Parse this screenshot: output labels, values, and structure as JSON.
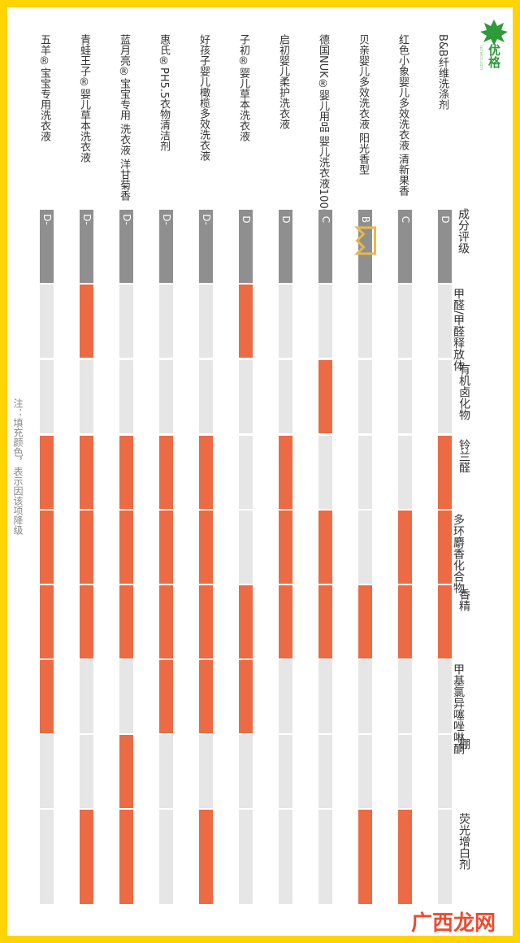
{
  "brand": {
    "name": "优格",
    "sub": "ucheck.com",
    "colors": {
      "border": "#ffd400",
      "fill": "#ec6a44",
      "empty": "#e6e6e6",
      "grade": "#8f8f8f",
      "crown": "#e8b84a"
    }
  },
  "note": "注：填充颜色，表示因该项降级",
  "watermark": "广西龙网",
  "chart_data": {
    "type": "table",
    "header_label": "成分评级",
    "columns": [
      "甲醛/甲醛释放体",
      "有机卤化物",
      "铃兰醛",
      "多环麝香化合物",
      "香精",
      "甲基氯异噻唑啉酮",
      "硼",
      "荧光增白剂"
    ],
    "rows": [
      {
        "name": "B&B纤维洗涤剂",
        "grade": "D",
        "flags": [
          0,
          0,
          1,
          1,
          1,
          0,
          0,
          0
        ]
      },
      {
        "name": "红色小象婴儿多效洗衣液 清新果香",
        "grade": "C",
        "flags": [
          0,
          0,
          0,
          1,
          1,
          0,
          0,
          1
        ]
      },
      {
        "name": "贝亲婴儿多效洗衣液 阳光香型",
        "grade": "B",
        "crown": true,
        "flags": [
          0,
          0,
          0,
          0,
          1,
          0,
          0,
          1
        ]
      },
      {
        "name": "德国NUK®婴儿用品 婴儿洗衣液1000毫升",
        "grade": "C",
        "flags": [
          0,
          1,
          0,
          1,
          1,
          0,
          0,
          0
        ]
      },
      {
        "name": "启初婴儿柔护洗衣液",
        "grade": "D",
        "flags": [
          0,
          0,
          1,
          1,
          1,
          0,
          0,
          0
        ]
      },
      {
        "name": "子初®婴儿草本洗衣液",
        "grade": "D",
        "flags": [
          1,
          0,
          0,
          0,
          1,
          1,
          0,
          0
        ]
      },
      {
        "name": "好孩子婴儿橄榄多效洗衣液",
        "grade": "D-",
        "flags": [
          0,
          0,
          1,
          1,
          1,
          1,
          0,
          1
        ]
      },
      {
        "name": "惠氏®PH5.5衣物清洁剂",
        "grade": "D-",
        "flags": [
          0,
          0,
          1,
          1,
          1,
          1,
          0,
          0
        ]
      },
      {
        "name": "蓝月亮®宝宝专用 洗衣液 洋甘菊香",
        "grade": "D-",
        "flags": [
          0,
          0,
          1,
          1,
          1,
          0,
          1,
          1
        ]
      },
      {
        "name": "青蛙王子®婴儿草本洗衣液",
        "grade": "D-",
        "flags": [
          1,
          0,
          1,
          1,
          1,
          0,
          0,
          1
        ]
      },
      {
        "name": "五羊®宝宝专用洗衣液",
        "grade": "D-",
        "flags": [
          0,
          0,
          1,
          1,
          1,
          1,
          0,
          0
        ]
      }
    ]
  }
}
